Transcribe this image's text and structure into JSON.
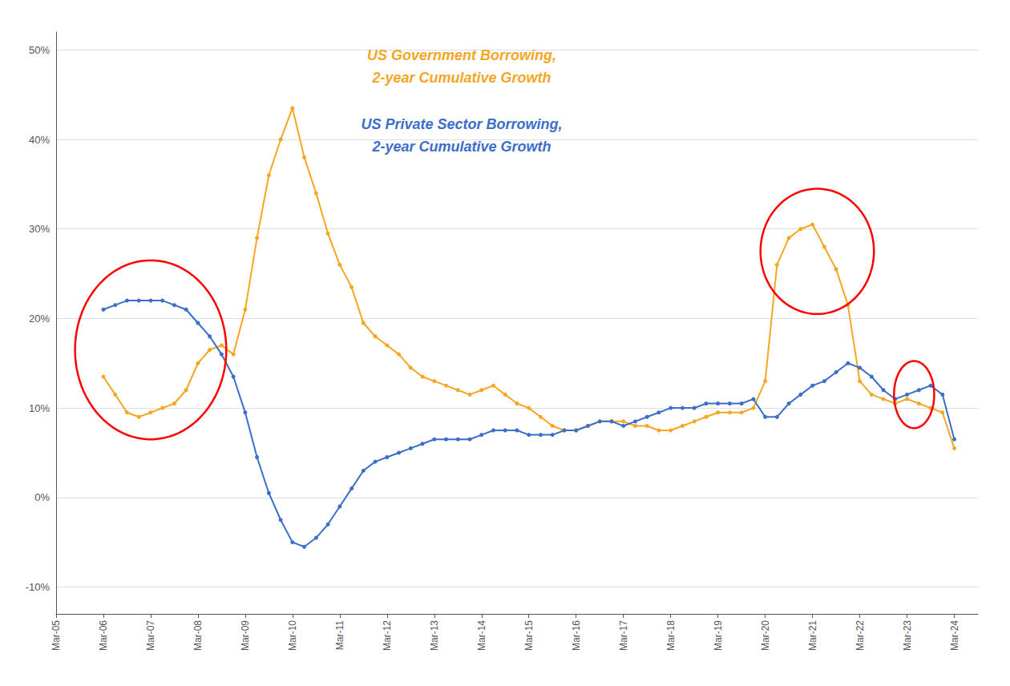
{
  "chart_data": {
    "type": "line",
    "x": [
      2005,
      2005.25,
      2005.5,
      2005.75,
      2006,
      2006.25,
      2006.5,
      2006.75,
      2007,
      2007.25,
      2007.5,
      2007.75,
      2008,
      2008.25,
      2008.5,
      2008.75,
      2009,
      2009.25,
      2009.5,
      2009.75,
      2010,
      2010.25,
      2010.5,
      2010.75,
      2011,
      2011.25,
      2011.5,
      2011.75,
      2012,
      2012.25,
      2012.5,
      2012.75,
      2013,
      2013.25,
      2013.5,
      2013.75,
      2014,
      2014.25,
      2014.5,
      2014.75,
      2015,
      2015.25,
      2015.5,
      2015.75,
      2016,
      2016.25,
      2016.5,
      2016.75,
      2017,
      2017.25,
      2017.5,
      2017.75,
      2018,
      2018.25,
      2018.5,
      2018.75,
      2019,
      2019.25,
      2019.5,
      2019.75,
      2020,
      2020.25,
      2020.5,
      2020.75,
      2021,
      2021.25,
      2021.5,
      2021.75,
      2022,
      2022.25,
      2022.5,
      2022.75,
      2023,
      2023.25,
      2023.5,
      2023.75,
      2024
    ],
    "xlim": [
      2005,
      2024.5
    ],
    "xticks": [
      {
        "value": 2005,
        "label": "Mar-05"
      },
      {
        "value": 2006,
        "label": "Mar-06"
      },
      {
        "value": 2007,
        "label": "Mar-07"
      },
      {
        "value": 2008,
        "label": "Mar-08"
      },
      {
        "value": 2009,
        "label": "Mar-09"
      },
      {
        "value": 2010,
        "label": "Mar-10"
      },
      {
        "value": 2011,
        "label": "Mar-11"
      },
      {
        "value": 2012,
        "label": "Mar-12"
      },
      {
        "value": 2013,
        "label": "Mar-13"
      },
      {
        "value": 2014,
        "label": "Mar-14"
      },
      {
        "value": 2015,
        "label": "Mar-15"
      },
      {
        "value": 2016,
        "label": "Mar-16"
      },
      {
        "value": 2017,
        "label": "Mar-17"
      },
      {
        "value": 2018,
        "label": "Mar-18"
      },
      {
        "value": 2019,
        "label": "Mar-19"
      },
      {
        "value": 2020,
        "label": "Mar-20"
      },
      {
        "value": 2021,
        "label": "Mar-21"
      },
      {
        "value": 2022,
        "label": "Mar-22"
      },
      {
        "value": 2023,
        "label": "Mar-23"
      },
      {
        "value": 2024,
        "label": "Mar-24"
      }
    ],
    "ylim": [
      -13,
      52
    ],
    "yticks": [
      {
        "value": -10,
        "label": "-10%"
      },
      {
        "value": 0,
        "label": "0%"
      },
      {
        "value": 10,
        "label": "10%"
      },
      {
        "value": 20,
        "label": "20%"
      },
      {
        "value": 30,
        "label": "30%"
      },
      {
        "value": 40,
        "label": "40%"
      },
      {
        "value": 50,
        "label": "50%"
      }
    ],
    "grid": true,
    "marker": "circle",
    "series": [
      {
        "color": "#F5A623",
        "values": [
          null,
          null,
          null,
          null,
          13.5,
          11.5,
          9.5,
          9.0,
          9.5,
          10.0,
          10.5,
          12.0,
          15.0,
          16.5,
          17.0,
          16.0,
          21.0,
          29.0,
          36.0,
          40.0,
          43.5,
          38.0,
          34.0,
          29.5,
          26.0,
          23.5,
          19.5,
          18.0,
          17.0,
          16.0,
          14.5,
          13.5,
          13.0,
          12.5,
          12.0,
          11.5,
          12.0,
          12.5,
          11.5,
          10.5,
          10.0,
          9.0,
          8.0,
          7.5,
          7.5,
          8.0,
          8.5,
          8.5,
          8.5,
          8.0,
          8.0,
          7.5,
          7.5,
          8.0,
          8.5,
          9.0,
          9.5,
          9.5,
          9.5,
          10.0,
          13.0,
          26.0,
          29.0,
          30.0,
          30.5,
          28.0,
          25.5,
          21.5,
          13.0,
          11.5,
          11.0,
          10.5,
          11.0,
          10.5,
          10.0,
          9.5,
          5.5
        ]
      },
      {
        "color": "#3B6EC8",
        "values": [
          null,
          null,
          null,
          null,
          21.0,
          21.5,
          22.0,
          22.0,
          22.0,
          22.0,
          21.5,
          21.0,
          19.5,
          18.0,
          16.0,
          13.5,
          9.5,
          4.5,
          0.5,
          -2.5,
          -5.0,
          -5.5,
          -4.5,
          -3.0,
          -1.0,
          1.0,
          3.0,
          4.0,
          4.5,
          5.0,
          5.5,
          6.0,
          6.5,
          6.5,
          6.5,
          6.5,
          7.0,
          7.5,
          7.5,
          7.5,
          7.0,
          7.0,
          7.0,
          7.5,
          7.5,
          8.0,
          8.5,
          8.5,
          8.0,
          8.5,
          9.0,
          9.5,
          10.0,
          10.0,
          10.0,
          10.5,
          10.5,
          10.5,
          10.5,
          11.0,
          9.0,
          9.0,
          10.5,
          11.5,
          12.5,
          13.0,
          14.0,
          15.0,
          14.5,
          13.5,
          12.0,
          11.0,
          11.5,
          12.0,
          12.5,
          11.5,
          6.5
        ]
      }
    ],
    "annotations": [
      {
        "text": "US Government Borrowing,",
        "color": "#F5A623"
      },
      {
        "text": "2-year Cumulative Growth",
        "color": "#F5A623"
      },
      {
        "text": "US Private Sector Borrowing,",
        "color": "#3B6EC8"
      },
      {
        "text": "2-year Cumulative Growth",
        "color": "#3B6EC8"
      }
    ],
    "highlights": {
      "color": "red",
      "ellipses": [
        {
          "x": 2007.0,
          "y": 16.5,
          "width": 3.2,
          "height": 20.0
        },
        {
          "x": 2021.1,
          "y": 27.5,
          "width": 2.4,
          "height": 14.0
        },
        {
          "x": 2023.15,
          "y": 11.5,
          "width": 0.85,
          "height": 7.5
        }
      ]
    }
  }
}
